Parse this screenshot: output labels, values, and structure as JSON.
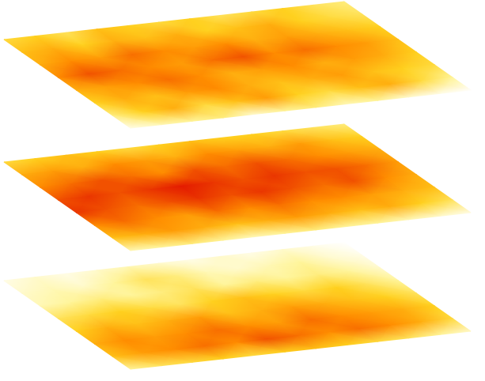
{
  "chart_data": [
    {
      "type": "heatmap",
      "tick_labels": false,
      "cells": [
        [
          0.45,
          0.5,
          0.4,
          0.55,
          0.5,
          0.45,
          0.5,
          0.4,
          0.45,
          0.5,
          0.4,
          0.35
        ],
        [
          0.55,
          0.6,
          0.5,
          0.6,
          0.55,
          0.6,
          0.5,
          0.55,
          0.6,
          0.5,
          0.45,
          0.4
        ],
        [
          0.6,
          0.7,
          0.65,
          0.75,
          0.7,
          0.65,
          0.7,
          0.6,
          0.65,
          0.6,
          0.55,
          0.5
        ],
        [
          0.7,
          0.8,
          0.75,
          0.7,
          0.65,
          0.75,
          0.8,
          0.7,
          0.75,
          0.7,
          0.65,
          0.55
        ],
        [
          0.6,
          0.65,
          0.7,
          0.75,
          0.7,
          0.6,
          0.65,
          0.7,
          0.6,
          0.65,
          0.6,
          0.5
        ],
        [
          0.5,
          0.6,
          0.55,
          0.65,
          0.7,
          0.6,
          0.55,
          0.6,
          0.65,
          0.55,
          0.5,
          0.45
        ],
        [
          0.35,
          0.5,
          0.6,
          0.45,
          0.55,
          0.65,
          0.5,
          0.45,
          0.55,
          0.6,
          0.45,
          0.3
        ],
        [
          0.15,
          0.25,
          0.3,
          0.35,
          0.2,
          0.3,
          0.35,
          0.25,
          0.3,
          0.2,
          0.15,
          0.1
        ]
      ]
    },
    {
      "type": "heatmap",
      "tick_labels": false,
      "cells": [
        [
          0.45,
          0.5,
          0.55,
          0.5,
          0.45,
          0.5,
          0.55,
          0.5,
          0.5,
          0.45,
          0.4,
          0.35
        ],
        [
          0.6,
          0.65,
          0.6,
          0.7,
          0.65,
          0.6,
          0.7,
          0.65,
          0.6,
          0.65,
          0.55,
          0.5
        ],
        [
          0.7,
          0.75,
          0.8,
          0.75,
          0.7,
          0.8,
          0.75,
          0.8,
          0.75,
          0.7,
          0.65,
          0.6
        ],
        [
          0.8,
          0.85,
          0.8,
          0.85,
          0.9,
          0.85,
          0.8,
          0.85,
          0.8,
          0.8,
          0.75,
          0.65
        ],
        [
          0.85,
          0.8,
          0.75,
          0.8,
          0.85,
          0.8,
          0.85,
          0.8,
          0.75,
          0.8,
          0.7,
          0.6
        ],
        [
          0.7,
          0.75,
          0.7,
          0.65,
          0.75,
          0.7,
          0.75,
          0.7,
          0.7,
          0.65,
          0.6,
          0.55
        ],
        [
          0.55,
          0.6,
          0.65,
          0.6,
          0.55,
          0.6,
          0.65,
          0.6,
          0.55,
          0.6,
          0.5,
          0.4
        ],
        [
          0.25,
          0.3,
          0.35,
          0.3,
          0.25,
          0.3,
          0.35,
          0.3,
          0.3,
          0.25,
          0.2,
          0.15
        ]
      ]
    },
    {
      "type": "heatmap",
      "tick_labels": false,
      "cells": [
        [
          0.15,
          0.2,
          0.15,
          0.2,
          0.25,
          0.2,
          0.15,
          0.2,
          0.15,
          0.2,
          0.15,
          0.1
        ],
        [
          0.2,
          0.25,
          0.2,
          0.3,
          0.4,
          0.35,
          0.25,
          0.2,
          0.25,
          0.3,
          0.2,
          0.15
        ],
        [
          0.25,
          0.3,
          0.35,
          0.3,
          0.35,
          0.4,
          0.3,
          0.35,
          0.3,
          0.35,
          0.3,
          0.2
        ],
        [
          0.4,
          0.45,
          0.5,
          0.45,
          0.4,
          0.5,
          0.55,
          0.5,
          0.45,
          0.5,
          0.4,
          0.3
        ],
        [
          0.5,
          0.6,
          0.55,
          0.6,
          0.65,
          0.55,
          0.6,
          0.65,
          0.6,
          0.55,
          0.5,
          0.4
        ],
        [
          0.6,
          0.7,
          0.65,
          0.7,
          0.75,
          0.7,
          0.65,
          0.75,
          0.7,
          0.65,
          0.6,
          0.5
        ],
        [
          0.55,
          0.65,
          0.7,
          0.75,
          0.7,
          0.8,
          0.75,
          0.7,
          0.75,
          0.7,
          0.6,
          0.45
        ],
        [
          0.3,
          0.4,
          0.45,
          0.5,
          0.45,
          0.5,
          0.55,
          0.5,
          0.45,
          0.4,
          0.3,
          0.2
        ]
      ]
    }
  ]
}
